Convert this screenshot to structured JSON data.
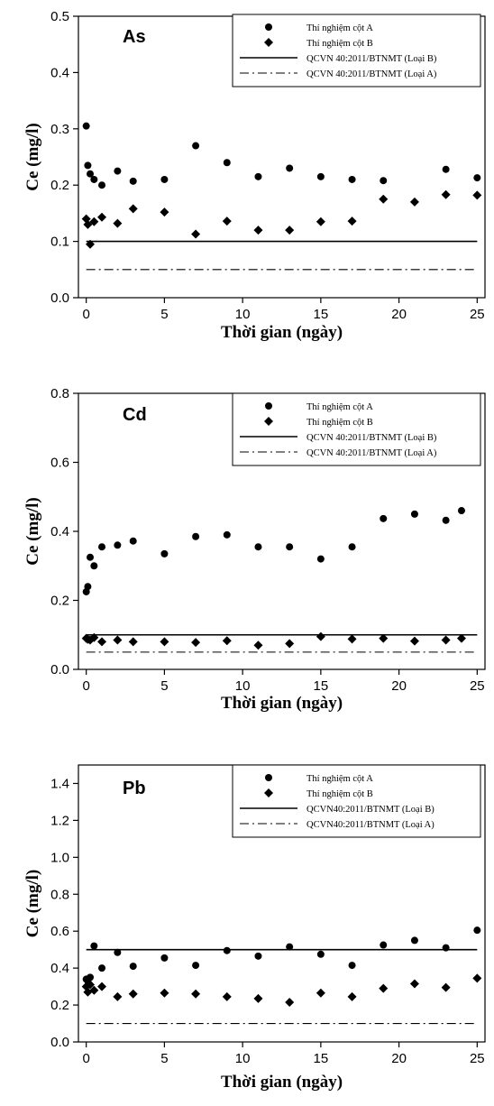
{
  "chart_data": [
    {
      "type": "scatter",
      "panel_label": "As",
      "xlabel": "Thời gian (ngày)",
      "ylabel": "Ce (mg/l)",
      "xlim": [
        -0.5,
        25.5
      ],
      "ylim": [
        0,
        0.5
      ],
      "xticks": [
        0,
        5,
        10,
        15,
        20,
        25
      ],
      "yticks": [
        "0.0",
        "0.1",
        "0.2",
        "0.3",
        "0.4",
        "0.5"
      ],
      "legend_position": "top-right",
      "series": [
        {
          "name": "Thí nghiệm cột A",
          "marker": "circle",
          "x": [
            0,
            0.1,
            0.25,
            0.5,
            1,
            2,
            3,
            5,
            7,
            9,
            11,
            13,
            15,
            17,
            19,
            23,
            25
          ],
          "y": [
            0.305,
            0.235,
            0.22,
            0.21,
            0.2,
            0.225,
            0.207,
            0.21,
            0.27,
            0.24,
            0.215,
            0.23,
            0.215,
            0.21,
            0.208,
            0.228,
            0.213
          ]
        },
        {
          "name": "Thí nghiệm cột B",
          "marker": "diamond",
          "x": [
            0,
            0.1,
            0.25,
            0.5,
            1,
            2,
            3,
            5,
            7,
            9,
            11,
            13,
            15,
            17,
            19,
            21,
            23,
            25
          ],
          "y": [
            0.14,
            0.13,
            0.095,
            0.135,
            0.143,
            0.132,
            0.158,
            0.152,
            0.113,
            0.136,
            0.12,
            0.12,
            0.135,
            0.136,
            0.175,
            0.17,
            0.183,
            0.182
          ]
        }
      ],
      "reference_lines": [
        {
          "name": "QCVN 40:2011/BTNMT (Loại B)",
          "y": 0.1,
          "style": "solid"
        },
        {
          "name": "QCVN 40:2011/BTNMT (Loại A)",
          "y": 0.05,
          "style": "dashdot"
        }
      ]
    },
    {
      "type": "scatter",
      "panel_label": "Cd",
      "xlabel": "Thời gian (ngày)",
      "ylabel": "Ce (mg/l)",
      "xlim": [
        -0.5,
        25.5
      ],
      "ylim": [
        0,
        0.8
      ],
      "xticks": [
        0,
        5,
        10,
        15,
        20,
        25
      ],
      "yticks": [
        "0.0",
        "0.2",
        "0.4",
        "0.6",
        "0.8"
      ],
      "legend_position": "top-right",
      "series": [
        {
          "name": "Thí nghiệm cột A",
          "marker": "circle",
          "x": [
            0,
            0.1,
            0.25,
            0.5,
            1,
            2,
            3,
            5,
            7,
            9,
            11,
            13,
            15,
            17,
            19,
            21,
            23,
            24
          ],
          "y": [
            0.225,
            0.24,
            0.325,
            0.3,
            0.355,
            0.36,
            0.372,
            0.335,
            0.385,
            0.39,
            0.355,
            0.355,
            0.32,
            0.355,
            0.437,
            0.45,
            0.432,
            0.46
          ]
        },
        {
          "name": "Thí nghiệm cột B",
          "marker": "diamond",
          "x": [
            0,
            0.1,
            0.25,
            0.5,
            1,
            2,
            3,
            5,
            7,
            9,
            11,
            13,
            15,
            17,
            19,
            21,
            23,
            24
          ],
          "y": [
            0.09,
            0.087,
            0.085,
            0.092,
            0.08,
            0.085,
            0.08,
            0.08,
            0.078,
            0.083,
            0.07,
            0.075,
            0.095,
            0.088,
            0.09,
            0.082,
            0.085,
            0.09
          ]
        }
      ],
      "reference_lines": [
        {
          "name": "QCVN 40:2011/BTNMT (Loại B)",
          "y": 0.1,
          "style": "solid"
        },
        {
          "name": "QCVN 40:2011/BTNMT (Loại A)",
          "y": 0.05,
          "style": "dashdot"
        }
      ]
    },
    {
      "type": "scatter",
      "panel_label": "Pb",
      "xlabel": "Thời gian (ngày)",
      "ylabel": "Ce (mg/l)",
      "xlim": [
        -0.5,
        25.5
      ],
      "ylim": [
        0,
        1.5
      ],
      "xticks": [
        0,
        5,
        10,
        15,
        20,
        25
      ],
      "yticks": [
        "0.0",
        "0.2",
        "0.4",
        "0.6",
        "0.8",
        "1.0",
        "1.2",
        "1.4"
      ],
      "legend_position": "top-right",
      "series": [
        {
          "name": "Thí nghiệm cột A",
          "marker": "circle",
          "x": [
            0,
            0.1,
            0.25,
            0.5,
            1,
            2,
            3,
            5,
            7,
            9,
            11,
            13,
            15,
            17,
            19,
            21,
            23,
            25
          ],
          "y": [
            0.34,
            0.33,
            0.35,
            0.52,
            0.4,
            0.485,
            0.41,
            0.455,
            0.415,
            0.495,
            0.465,
            0.515,
            0.475,
            0.415,
            0.525,
            0.55,
            0.51,
            0.605
          ]
        },
        {
          "name": "Thí nghiệm cột B",
          "marker": "diamond",
          "x": [
            0,
            0.1,
            0.25,
            0.5,
            1,
            2,
            3,
            5,
            7,
            9,
            11,
            13,
            15,
            17,
            19,
            21,
            23,
            25
          ],
          "y": [
            0.3,
            0.27,
            0.31,
            0.28,
            0.3,
            0.245,
            0.26,
            0.265,
            0.26,
            0.245,
            0.235,
            0.215,
            0.265,
            0.245,
            0.29,
            0.315,
            0.295,
            0.345
          ]
        }
      ],
      "reference_lines": [
        {
          "name": "QCVN40:2011/BTNMT (Loại B)",
          "y": 0.5,
          "style": "solid"
        },
        {
          "name": "QCVN40:2011/BTNMT (Loại A)",
          "y": 0.1,
          "style": "dashdot"
        }
      ]
    }
  ]
}
